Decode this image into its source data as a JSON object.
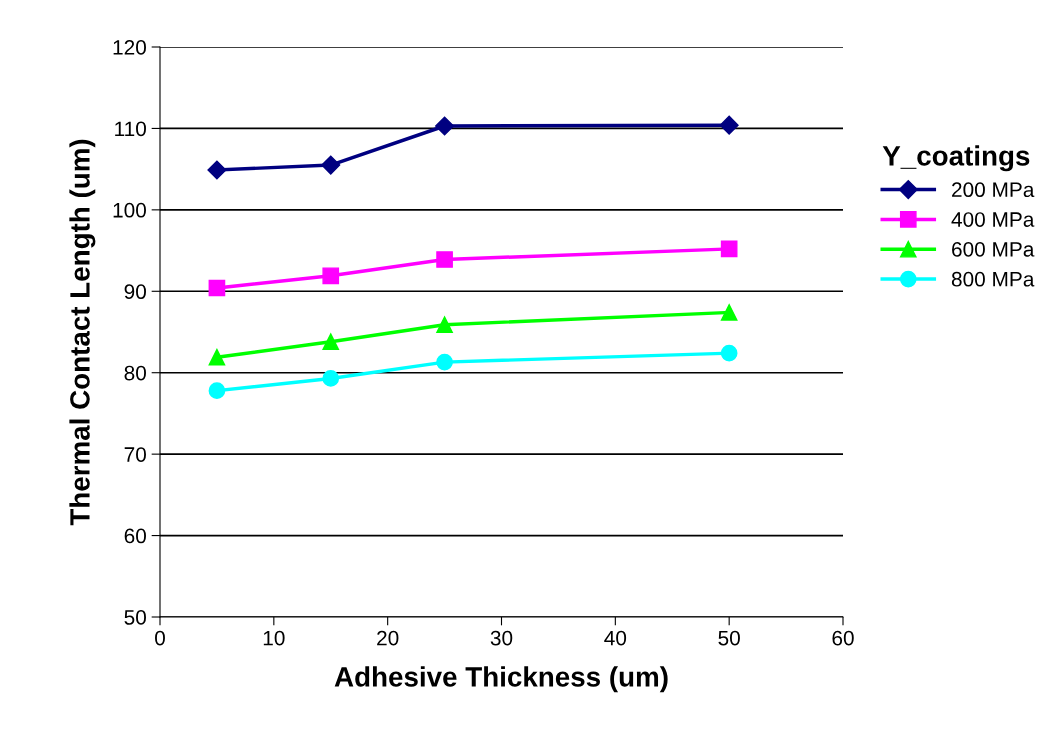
{
  "chart_data": {
    "type": "line",
    "xlabel": "Adhesive Thickness (um)",
    "ylabel": "Thermal Contact Length (um)",
    "legend_title": "Y_coatings",
    "x": [
      5,
      15,
      25,
      50
    ],
    "series": [
      {
        "name": "200 MPa",
        "color": "#000080",
        "marker": "diamond",
        "values": [
          104.9,
          105.5,
          110.3,
          110.4
        ]
      },
      {
        "name": "400 MPa",
        "color": "#ff00ff",
        "marker": "square",
        "values": [
          90.4,
          91.9,
          93.9,
          95.2
        ]
      },
      {
        "name": "600 MPa",
        "color": "#00ff00",
        "marker": "triangle",
        "values": [
          81.9,
          83.8,
          85.9,
          87.4
        ]
      },
      {
        "name": "800 MPa",
        "color": "#00ffff",
        "marker": "circle",
        "values": [
          77.8,
          79.3,
          81.3,
          82.4
        ]
      }
    ],
    "xlim": [
      0,
      60
    ],
    "xticks": [
      0,
      10,
      20,
      30,
      40,
      50,
      60
    ],
    "ylim": [
      50,
      120
    ],
    "yticks": [
      50,
      60,
      70,
      80,
      90,
      100,
      110,
      120
    ],
    "grid": "y",
    "legend": "right",
    "line_style": "solid"
  }
}
